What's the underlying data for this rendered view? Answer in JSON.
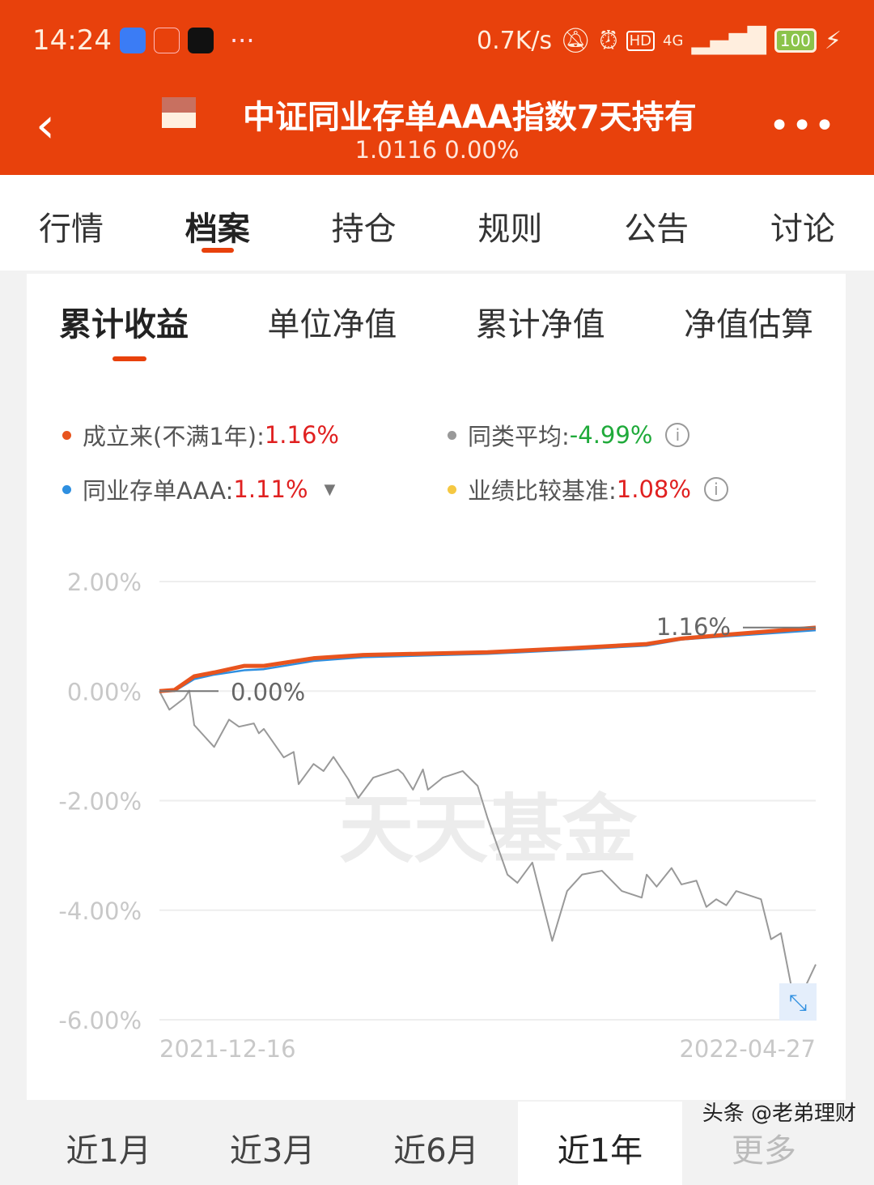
{
  "status_bar": {
    "time": "14:24",
    "more": "···",
    "net_speed": "0.7K/s",
    "hd": "HD",
    "network": "4G",
    "battery": "100"
  },
  "header": {
    "back_icon": "chevron-left-icon",
    "title": "中证同业存单AAA指数7天持有",
    "nav": "1.0116",
    "change": "0.00%",
    "more": "•••"
  },
  "tabs": [
    {
      "label": "行情"
    },
    {
      "label": "档案",
      "active": true
    },
    {
      "label": "持仓"
    },
    {
      "label": "规则"
    },
    {
      "label": "公告"
    },
    {
      "label": "讨论"
    }
  ],
  "sub_tabs": [
    {
      "label": "累计收益",
      "active": true
    },
    {
      "label": "单位净值"
    },
    {
      "label": "累计净值"
    },
    {
      "label": "净值估算"
    }
  ],
  "legend": [
    {
      "label": "成立来(不满1年):",
      "value": "1.16%",
      "color": "#e8541e",
      "value_color": "#e02020"
    },
    {
      "label": "同类平均:",
      "value": "-4.99%",
      "color": "#999999",
      "value_color": "#1faa3a"
    },
    {
      "label": "同业存单AAA:",
      "value": "1.11%",
      "color": "#2e8fe0",
      "value_color": "#e02020"
    },
    {
      "label": "业绩比较基准:",
      "value": "1.08%",
      "color": "#f5c842",
      "value_color": "#e02020"
    }
  ],
  "chart_data": {
    "type": "line",
    "ylim": [
      -6,
      2
    ],
    "y_ticks": [
      "2.00%",
      "0.00%",
      "-2.00%",
      "-4.00%",
      "-6.00%"
    ],
    "x_ticks": [
      "2021-12-16",
      "2022-04-27"
    ],
    "start_label": "0.00%",
    "end_label": "1.16%",
    "watermark": "天天基金",
    "grid": true,
    "series": [
      {
        "name": "同类平均",
        "color": "#999999",
        "points": [
          [
            "2021-12-16",
            0
          ],
          [
            "2021-12-18",
            -0.34
          ],
          [
            "2021-12-21",
            -0.13
          ],
          [
            "2021-12-22",
            0.01
          ],
          [
            "2021-12-23",
            -0.62
          ],
          [
            "2021-12-27",
            -1.02
          ],
          [
            "2021-12-30",
            -0.52
          ],
          [
            "2022-01-01",
            -0.65
          ],
          [
            "2022-01-04",
            -0.59
          ],
          [
            "2022-01-05",
            -0.77
          ],
          [
            "2022-01-06",
            -0.69
          ],
          [
            "2022-01-10",
            -1.21
          ],
          [
            "2022-01-12",
            -1.11
          ],
          [
            "2022-01-13",
            -1.7
          ],
          [
            "2022-01-16",
            -1.33
          ],
          [
            "2022-01-18",
            -1.46
          ],
          [
            "2022-01-20",
            -1.2
          ],
          [
            "2022-01-23",
            -1.61
          ],
          [
            "2022-01-25",
            -1.95
          ],
          [
            "2022-01-28",
            -1.58
          ],
          [
            "2022-02-02",
            -1.43
          ],
          [
            "2022-02-03",
            -1.51
          ],
          [
            "2022-02-05",
            -1.8
          ],
          [
            "2022-02-07",
            -1.43
          ],
          [
            "2022-02-08",
            -1.8
          ],
          [
            "2022-02-11",
            -1.58
          ],
          [
            "2022-02-15",
            -1.46
          ],
          [
            "2022-02-18",
            -1.73
          ],
          [
            "2022-02-20",
            -2.32
          ],
          [
            "2022-02-24",
            -3.35
          ],
          [
            "2022-02-26",
            -3.5
          ],
          [
            "2022-03-01",
            -3.13
          ],
          [
            "2022-03-05",
            -4.56
          ],
          [
            "2022-03-08",
            -3.65
          ],
          [
            "2022-03-11",
            -3.35
          ],
          [
            "2022-03-15",
            -3.28
          ],
          [
            "2022-03-19",
            -3.65
          ],
          [
            "2022-03-23",
            -3.77
          ],
          [
            "2022-03-24",
            -3.35
          ],
          [
            "2022-03-26",
            -3.57
          ],
          [
            "2022-03-29",
            -3.23
          ],
          [
            "2022-03-31",
            -3.53
          ],
          [
            "2022-04-03",
            -3.46
          ],
          [
            "2022-04-05",
            -3.94
          ],
          [
            "2022-04-07",
            -3.8
          ],
          [
            "2022-04-09",
            -3.91
          ],
          [
            "2022-04-11",
            -3.65
          ],
          [
            "2022-04-16",
            -3.8
          ],
          [
            "2022-04-18",
            -4.53
          ],
          [
            "2022-04-20",
            -4.42
          ],
          [
            "2022-04-22",
            -5.35
          ],
          [
            "2022-04-24",
            -5.57
          ],
          [
            "2022-04-27",
            -4.99
          ]
        ]
      },
      {
        "name": "同业存单AAA",
        "color": "#2e8fe0",
        "points": [
          [
            "2021-12-16",
            0
          ],
          [
            "2021-12-19",
            0
          ],
          [
            "2021-12-23",
            0.22
          ],
          [
            "2021-12-27",
            0.3
          ],
          [
            "2022-01-02",
            0.38
          ],
          [
            "2022-01-06",
            0.4
          ],
          [
            "2022-01-16",
            0.55
          ],
          [
            "2022-01-26",
            0.62
          ],
          [
            "2022-02-20",
            0.68
          ],
          [
            "2022-03-08",
            0.75
          ],
          [
            "2022-03-24",
            0.83
          ],
          [
            "2022-03-31",
            0.94
          ],
          [
            "2022-04-09",
            1.0
          ],
          [
            "2022-04-27",
            1.11
          ]
        ]
      },
      {
        "name": "成立来(不满1年)",
        "color": "#e8541e",
        "points": [
          [
            "2021-12-16",
            0
          ],
          [
            "2021-12-19",
            0.02
          ],
          [
            "2021-12-23",
            0.27
          ],
          [
            "2021-12-27",
            0.34
          ],
          [
            "2022-01-02",
            0.46
          ],
          [
            "2022-01-06",
            0.46
          ],
          [
            "2022-01-16",
            0.6
          ],
          [
            "2022-01-26",
            0.66
          ],
          [
            "2022-02-20",
            0.71
          ],
          [
            "2022-03-08",
            0.78
          ],
          [
            "2022-03-24",
            0.86
          ],
          [
            "2022-03-31",
            0.96
          ],
          [
            "2022-04-09",
            1.03
          ],
          [
            "2022-04-27",
            1.16
          ]
        ]
      }
    ]
  },
  "period_tabs": [
    {
      "label": "近1月"
    },
    {
      "label": "近3月"
    },
    {
      "label": "近6月"
    },
    {
      "label": "近1年",
      "active": true
    },
    {
      "label": "更多"
    }
  ],
  "watermark_text": "头条 @老弟理财"
}
